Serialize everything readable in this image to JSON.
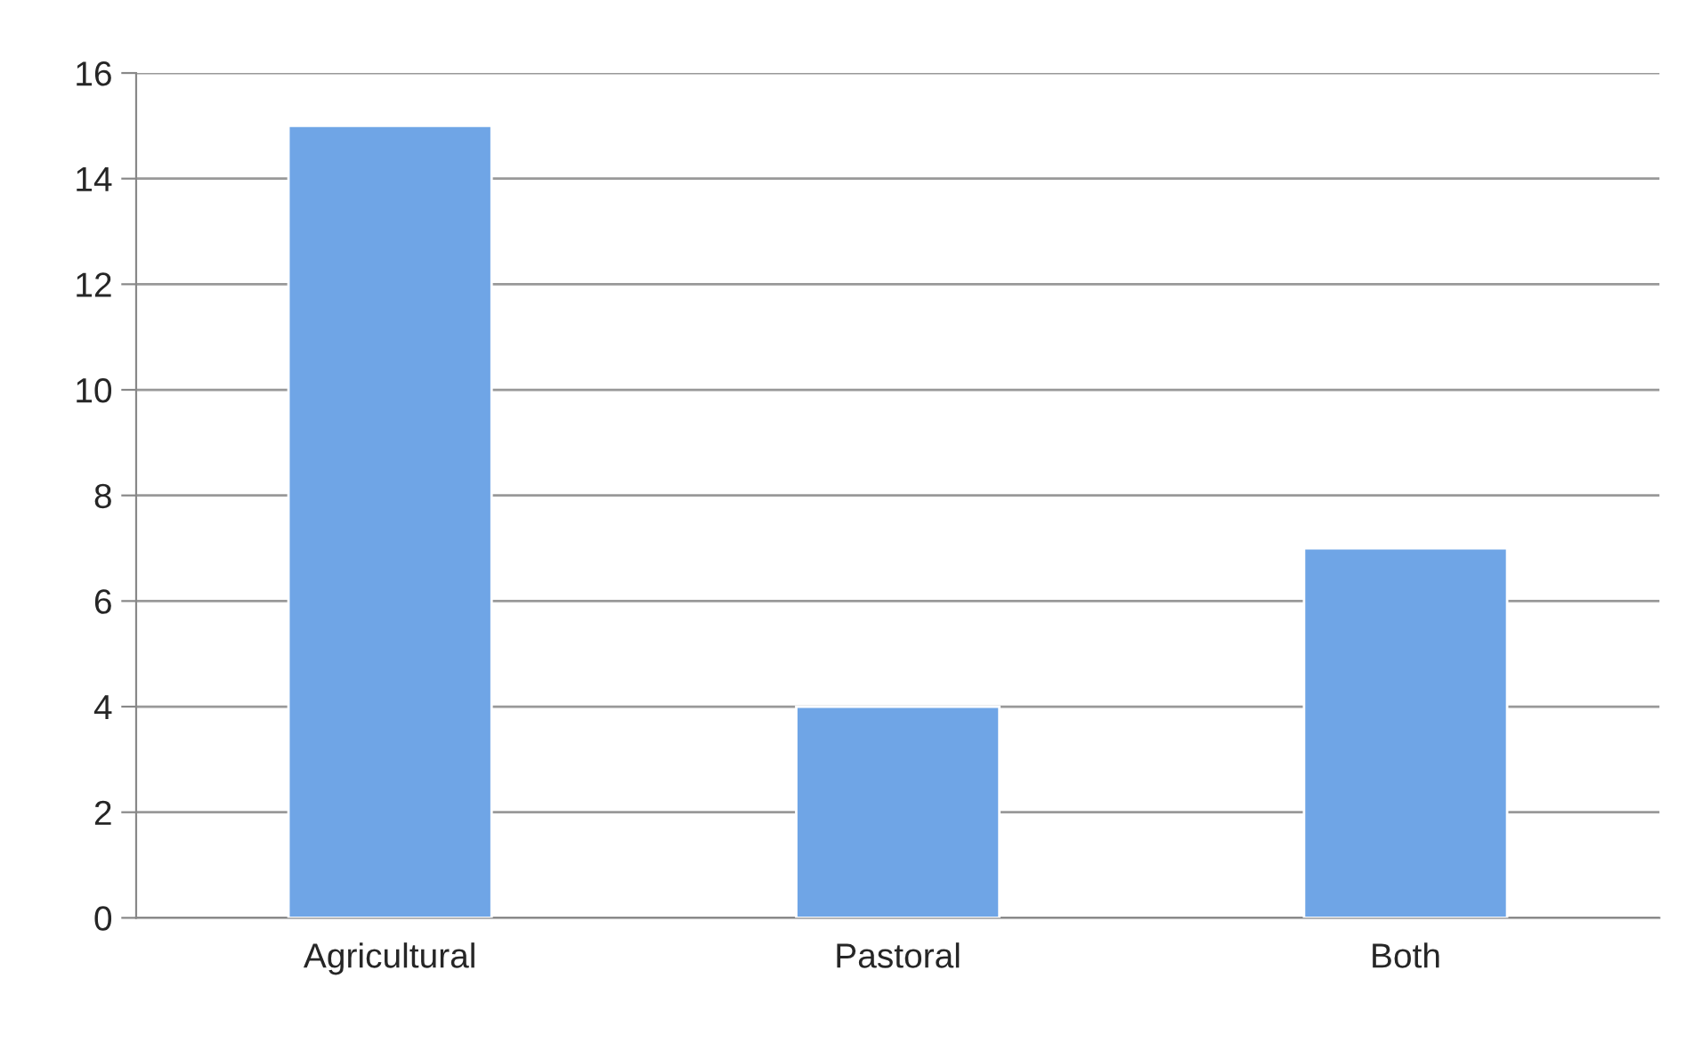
{
  "chart_data": {
    "type": "bar",
    "categories": [
      "Agricultural",
      "Pastoral",
      "Both"
    ],
    "values": [
      15,
      4,
      7
    ],
    "color": "#6fa5e6",
    "ylim": [
      0,
      16
    ],
    "yticks": [
      0,
      2,
      4,
      6,
      8,
      10,
      12,
      14,
      16
    ],
    "grid": "y"
  }
}
